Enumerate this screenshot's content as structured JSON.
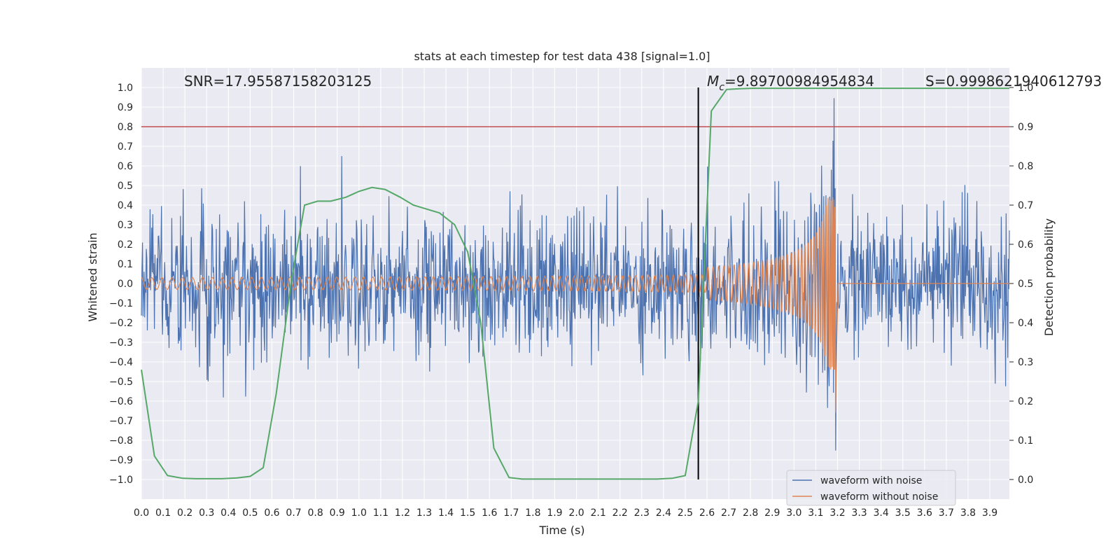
{
  "chart_data": {
    "type": "line",
    "title": "stats at each timestep for test data 438 [signal=1.0]",
    "xlabel": "Time (s)",
    "ylabel": "Whitened strain",
    "y2label": "Detection probability",
    "xlim": [
      0.0,
      3.99
    ],
    "ylim": [
      -1.1,
      1.1
    ],
    "y2lim": [
      -0.05,
      1.05
    ],
    "grid": true,
    "x_ticks": [
      "0.0",
      "0.1",
      "0.2",
      "0.3",
      "0.4",
      "0.5",
      "0.6",
      "0.7",
      "0.8",
      "0.9",
      "1.0",
      "1.1",
      "1.2",
      "1.3",
      "1.4",
      "1.5",
      "1.6",
      "1.7",
      "1.8",
      "1.9",
      "2.0",
      "2.1",
      "2.2",
      "2.3",
      "2.4",
      "2.5",
      "2.6",
      "2.7",
      "2.8",
      "2.9",
      "3.0",
      "3.1",
      "3.2",
      "3.3",
      "3.4",
      "3.5",
      "3.6",
      "3.7",
      "3.8",
      "3.9"
    ],
    "y_ticks": [
      "1.0",
      "0.9",
      "0.8",
      "0.7",
      "0.6",
      "0.5",
      "0.4",
      "0.3",
      "0.2",
      "0.1",
      "0.0",
      "−0.1",
      "−0.2",
      "−0.3",
      "−0.4",
      "−0.5",
      "−0.6",
      "−0.7",
      "−0.8",
      "−0.9",
      "−1.0"
    ],
    "y2_ticks": [
      "1.0",
      "0.9",
      "0.8",
      "0.7",
      "0.6",
      "0.5",
      "0.4",
      "0.3",
      "0.2",
      "0.1",
      "0.0"
    ],
    "annotations": {
      "snr": "SNR=17.95587158203125",
      "mc_symbol": "M",
      "mc_sub": "c",
      "mc_value": "=9.89700984954834",
      "s": "S=0.9998621940612793"
    },
    "threshold_line": {
      "y2": 0.9,
      "color": "#c44e52"
    },
    "detection_time": 2.56,
    "series": [
      {
        "name": "waveform with noise",
        "color": "#4c72b0",
        "kind": "noise",
        "rms": 0.2,
        "max_abs": 0.97,
        "duration": 3.99,
        "samples": 1600
      },
      {
        "name": "waveform without noise",
        "color": "#dd8452",
        "kind": "chirp",
        "merger_time": 3.19,
        "start_freq_hz": 21,
        "start_amp": 0.03,
        "peak_amp": 0.44,
        "min_amp": -0.69
      },
      {
        "name": "detection probability",
        "color": "#55a868",
        "axis": "y2",
        "x": [
          0.0,
          0.06,
          0.12,
          0.19,
          0.25,
          0.31,
          0.37,
          0.44,
          0.5,
          0.56,
          0.62,
          0.69,
          0.75,
          0.81,
          0.87,
          0.94,
          1.0,
          1.06,
          1.12,
          1.19,
          1.25,
          1.31,
          1.37,
          1.44,
          1.5,
          1.56,
          1.62,
          1.69,
          1.75,
          1.81,
          1.87,
          1.94,
          2.0,
          2.06,
          2.12,
          2.19,
          2.25,
          2.31,
          2.37,
          2.44,
          2.5,
          2.56,
          2.62,
          2.69,
          2.75,
          2.81,
          2.87,
          2.94,
          3.0,
          3.06,
          3.12,
          3.19,
          3.25,
          3.31,
          3.37,
          3.44,
          3.5,
          3.56,
          3.62,
          3.69,
          3.75,
          3.81,
          3.87,
          3.94,
          3.99
        ],
        "values": [
          0.28,
          0.06,
          0.01,
          0.003,
          0.002,
          0.002,
          0.002,
          0.004,
          0.008,
          0.03,
          0.22,
          0.51,
          0.7,
          0.71,
          0.71,
          0.72,
          0.735,
          0.745,
          0.74,
          0.72,
          0.7,
          0.69,
          0.68,
          0.65,
          0.58,
          0.4,
          0.08,
          0.005,
          0.001,
          0.001,
          0.001,
          0.001,
          0.001,
          0.001,
          0.001,
          0.001,
          0.001,
          0.001,
          0.001,
          0.003,
          0.01,
          0.2,
          0.94,
          0.995,
          0.997,
          0.998,
          0.998,
          0.998,
          0.998,
          0.998,
          0.998,
          0.998,
          0.998,
          0.998,
          0.998,
          0.998,
          0.998,
          0.998,
          0.998,
          0.998,
          0.998,
          0.998,
          0.998,
          0.998,
          0.998
        ]
      }
    ],
    "legend": {
      "placement": "lower-right",
      "items": [
        {
          "label": "waveform with noise",
          "color": "#4c72b0"
        },
        {
          "label": "waveform without noise",
          "color": "#dd8452"
        }
      ]
    }
  },
  "colors": {
    "axes_bg": "#eaeaf2",
    "grid": "#ffffff",
    "text": "#262626",
    "vline": "#000000"
  }
}
